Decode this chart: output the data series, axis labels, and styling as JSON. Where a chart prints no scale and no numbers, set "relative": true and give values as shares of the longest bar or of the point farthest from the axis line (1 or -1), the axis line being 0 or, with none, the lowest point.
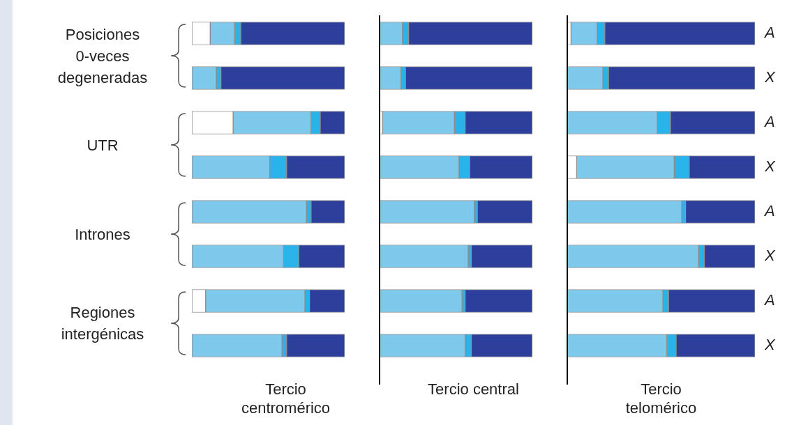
{
  "chart_data": [
    {
      "type": "bar",
      "orientation": "horizontal",
      "stacked": true,
      "relative": true,
      "tick_labels": false,
      "xlabel": "Tercio centromérico",
      "categories": [
        null,
        null,
        null,
        null,
        null,
        null,
        null,
        null
      ],
      "annotations": [
        "Posiciones 0-veces degeneradas",
        "UTR",
        "Intrones",
        "Regiones intergénicas"
      ],
      "series": [
        {
          "color": "#ffffff",
          "values": [
            0.12,
            0,
            0.27,
            0,
            0,
            0,
            0.09,
            0
          ]
        },
        {
          "color": "#7ec8ec",
          "values": [
            0.16,
            0.16,
            0.51,
            0.51,
            0.75,
            0.6,
            0.65,
            0.59
          ]
        },
        {
          "color": "#29b3e8",
          "values": [
            0.04,
            0.03,
            0.06,
            0.11,
            0.03,
            0.1,
            0.03,
            0.03
          ]
        },
        {
          "color": "#2e3f9b",
          "values": [
            0.68,
            0.81,
            0.16,
            0.38,
            0.22,
            0.3,
            0.23,
            0.38
          ]
        }
      ]
    },
    {
      "type": "bar",
      "orientation": "horizontal",
      "stacked": true,
      "relative": true,
      "tick_labels": false,
      "xlabel": "Tercio central",
      "categories": [
        null,
        null,
        null,
        null,
        null,
        null,
        null,
        null
      ],
      "series": [
        {
          "color": "#ffffff",
          "values": [
            0,
            0,
            0.02,
            0,
            0,
            0,
            0,
            0
          ]
        },
        {
          "color": "#7ec8ec",
          "values": [
            0.15,
            0.14,
            0.47,
            0.52,
            0.62,
            0.58,
            0.54,
            0.56
          ]
        },
        {
          "color": "#29b3e8",
          "values": [
            0.04,
            0.03,
            0.07,
            0.07,
            0.02,
            0.02,
            0.02,
            0.04
          ]
        },
        {
          "color": "#2e3f9b",
          "values": [
            0.81,
            0.83,
            0.44,
            0.41,
            0.36,
            0.4,
            0.44,
            0.4
          ]
        }
      ]
    },
    {
      "type": "bar",
      "orientation": "horizontal",
      "stacked": true,
      "relative": true,
      "tick_labels": "y",
      "xlabel": "Tercio telomérico",
      "categories": [
        "A",
        "X",
        "A",
        "X",
        "A",
        "X",
        "A",
        "X"
      ],
      "series": [
        {
          "color": "#ffffff",
          "values": [
            0.02,
            0,
            0,
            0.05,
            0,
            0,
            0,
            0
          ]
        },
        {
          "color": "#7ec8ec",
          "values": [
            0.14,
            0.19,
            0.48,
            0.52,
            0.61,
            0.7,
            0.51,
            0.53
          ]
        },
        {
          "color": "#29b3e8",
          "values": [
            0.04,
            0.03,
            0.07,
            0.08,
            0.02,
            0.03,
            0.03,
            0.05
          ]
        },
        {
          "color": "#2e3f9b",
          "values": [
            0.8,
            0.78,
            0.45,
            0.35,
            0.37,
            0.27,
            0.46,
            0.42
          ]
        }
      ]
    }
  ]
}
